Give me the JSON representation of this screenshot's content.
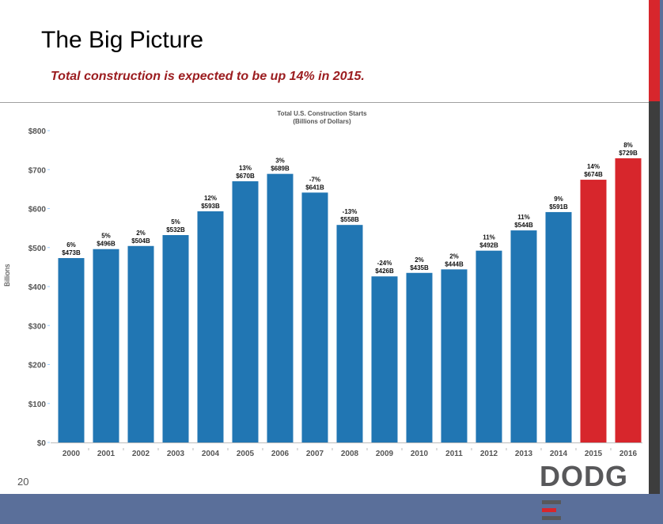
{
  "slide": {
    "title": "The Big Picture",
    "subtitle": "Total construction is expected to be up 14% in 2015.",
    "page_number": "20",
    "logo_text": "DODGE"
  },
  "colors": {
    "actual": "#2176b3",
    "forecast": "#d7262c",
    "accent": "#d7262c"
  },
  "chart_data": {
    "type": "bar",
    "title": "Total U.S. Construction Starts",
    "subtitle": "(Billions of Dollars)",
    "xlabel": "",
    "ylabel": "Billions",
    "ylim": [
      0,
      800
    ],
    "yticks": [
      0,
      100,
      200,
      300,
      400,
      500,
      600,
      700,
      800
    ],
    "ytick_labels": [
      "$0",
      "$100",
      "$200",
      "$300",
      "$400",
      "$500",
      "$600",
      "$700",
      "$800"
    ],
    "grid": false,
    "categories": [
      "2000",
      "2001",
      "2002",
      "2003",
      "2004",
      "2005",
      "2006",
      "2007",
      "2008",
      "2009",
      "2010",
      "2011",
      "2012",
      "2013",
      "2014",
      "2015",
      "2016"
    ],
    "values": [
      473,
      496,
      504,
      532,
      593,
      670,
      689,
      641,
      558,
      426,
      435,
      444,
      492,
      544,
      591,
      674,
      729
    ],
    "value_labels": [
      "$473B",
      "$496B",
      "$504B",
      "$532B",
      "$593B",
      "$670B",
      "$689B",
      "$641B",
      "$558B",
      "$426B",
      "$435B",
      "$444B",
      "$492B",
      "$544B",
      "$591B",
      "$674B",
      "$729B"
    ],
    "pct_labels": [
      "6%",
      "5%",
      "2%",
      "5%",
      "12%",
      "13%",
      "3%",
      "-7%",
      "-13%",
      "-24%",
      "2%",
      "2%",
      "11%",
      "11%",
      "9%",
      "14%",
      "8%"
    ],
    "forecast": [
      false,
      false,
      false,
      false,
      false,
      false,
      false,
      false,
      false,
      false,
      false,
      false,
      false,
      false,
      false,
      true,
      true
    ]
  }
}
